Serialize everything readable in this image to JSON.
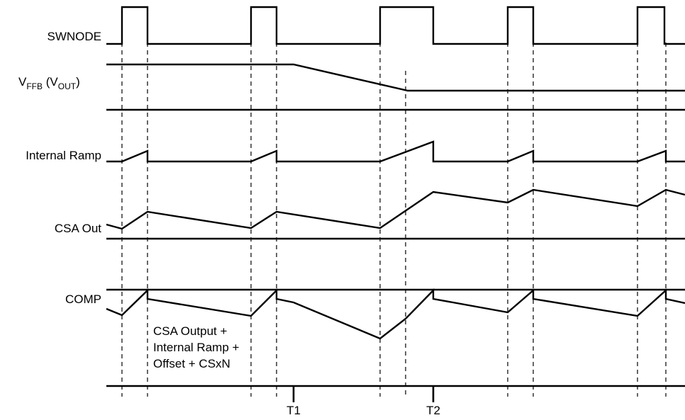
{
  "labels": {
    "swnode": "SWNODE",
    "vffb_main": "V",
    "vffb_sub": "FFB",
    "vffb_mid": " (V",
    "vffb_sub2": "OUT",
    "vffb_end": ")",
    "internal_ramp": "Internal Ramp",
    "csa_out": "CSA Out",
    "comp": "COMP"
  },
  "annotation": {
    "line1": "CSA Output +",
    "line2": "Internal Ramp +",
    "line3": "Offset + CSxN"
  },
  "markers": {
    "t1": "T1",
    "t2": "T2"
  }
}
